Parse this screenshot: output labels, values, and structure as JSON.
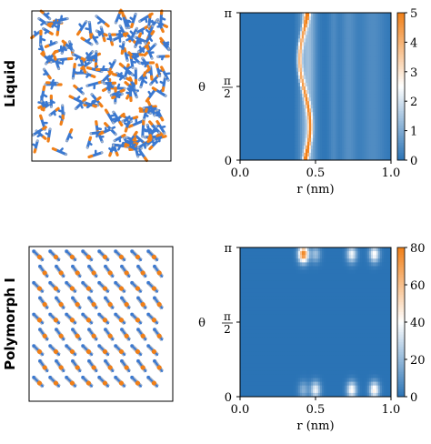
{
  "rows": [
    {
      "label": "Liquid",
      "snapshot": {
        "kind": "disordered",
        "colors": {
          "blue": "#3a78d0",
          "orange": "#f07f17",
          "gray": "#aab4c4"
        }
      },
      "chart_data": {
        "type": "heatmap",
        "title": "",
        "xlabel": "r (nm)",
        "ylabel": "θ",
        "x_range": [
          0.0,
          1.0
        ],
        "y_range": [
          0,
          3.1416
        ],
        "x_ticks": [
          "0.0",
          "0.5",
          "1.0"
        ],
        "y_ticks": [
          "0",
          "π/2",
          "π"
        ],
        "colorbar": {
          "min": 0,
          "max": 5,
          "ticks": [
            "0",
            "1",
            "2",
            "3",
            "4",
            "5"
          ]
        },
        "colormap": [
          "#2a73b5",
          "#ffffff",
          "#f07f17"
        ],
        "features": [
          {
            "r_center": 0.43,
            "r_width": 0.016,
            "theta_variation": 0.035,
            "value": 3.6
          },
          {
            "r_center": 0.45,
            "r_width": 0.05,
            "value": 1.3
          },
          {
            "r_center": 0.62,
            "r_width": 0.03,
            "value": 0.35
          },
          {
            "r_center": 0.72,
            "r_width": 0.05,
            "value": 0.45
          },
          {
            "r_center": 0.88,
            "r_width": 0.08,
            "value": 0.4
          }
        ],
        "hotspots": [
          {
            "r": 0.435,
            "theta": 3.05,
            "value": 5.0
          },
          {
            "r": 0.44,
            "theta": 0.12,
            "value": 4.6
          }
        ]
      }
    },
    {
      "label": "Polymorph I",
      "snapshot": {
        "kind": "crystal",
        "colors": {
          "blue": "#3a78d0",
          "orange": "#f07f17",
          "gray": "#aab4c4"
        }
      },
      "chart_data": {
        "type": "heatmap",
        "title": "",
        "xlabel": "r (nm)",
        "ylabel": "θ",
        "x_range": [
          0.0,
          1.0
        ],
        "y_range": [
          0,
          3.1416
        ],
        "x_ticks": [
          "0.0",
          "0.5",
          "1.0"
        ],
        "y_ticks": [
          "0",
          "π/2",
          "π"
        ],
        "colorbar": {
          "min": 0,
          "max": 80,
          "ticks": [
            "0",
            "20",
            "40",
            "60",
            "80"
          ]
        },
        "colormap": [
          "#2a73b5",
          "#ffffff",
          "#f07f17"
        ],
        "peaks": [
          {
            "r": 0.42,
            "theta": 3.0,
            "value": 80
          },
          {
            "r": 0.5,
            "theta": 3.0,
            "value": 22
          },
          {
            "r": 0.74,
            "theta": 3.0,
            "value": 38
          },
          {
            "r": 0.89,
            "theta": 3.0,
            "value": 42
          },
          {
            "r": 0.42,
            "theta": 0.14,
            "value": 18
          },
          {
            "r": 0.5,
            "theta": 0.14,
            "value": 38
          },
          {
            "r": 0.74,
            "theta": 0.14,
            "value": 42
          },
          {
            "r": 0.89,
            "theta": 0.14,
            "value": 45
          }
        ]
      }
    }
  ]
}
